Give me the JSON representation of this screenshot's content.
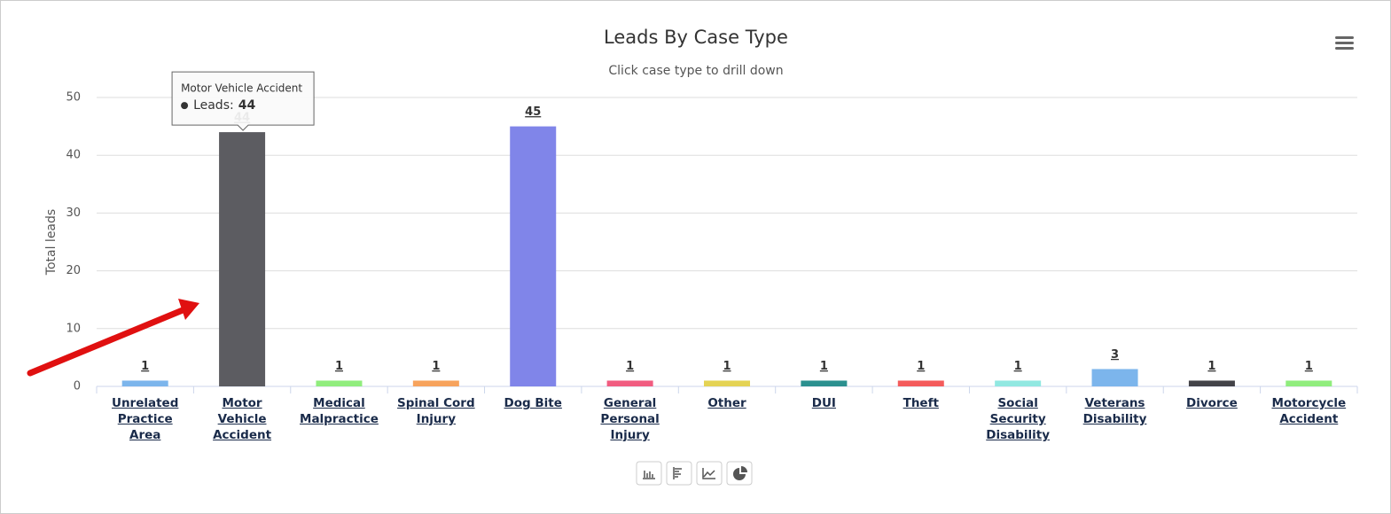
{
  "chart_data": {
    "type": "bar",
    "title": "Leads By Case Type",
    "subtitle": "Click case type to drill down",
    "y_axis_label": "Total leads",
    "categories": [
      "Unrelated Practice Area",
      "Motor Vehicle Accident",
      "Medical Malpractice",
      "Spinal Cord Injury",
      "Dog Bite",
      "General Personal Injury",
      "Other",
      "DUI",
      "Theft",
      "Social Security Disability",
      "Veterans Disability",
      "Divorce",
      "Motorcycle Accident"
    ],
    "series": [
      {
        "name": "Leads",
        "values": [
          1,
          44,
          1,
          1,
          45,
          1,
          1,
          1,
          1,
          1,
          3,
          1,
          1
        ]
      }
    ],
    "colors": [
      "#7cb5ec",
      "#5c5c61",
      "#90ed7d",
      "#f7a35c",
      "#8085e9",
      "#f15c80",
      "#e4d354",
      "#2b908f",
      "#f45b5b",
      "#91e8e1",
      "#7cb5ec",
      "#434348",
      "#90ed7d"
    ],
    "ylim": [
      0,
      50
    ],
    "yticks": [
      0,
      10,
      20,
      30,
      40,
      50
    ],
    "grid": true,
    "tooltip": {
      "category": "Motor Vehicle Accident",
      "label": "Leads:",
      "value": 44
    }
  }
}
